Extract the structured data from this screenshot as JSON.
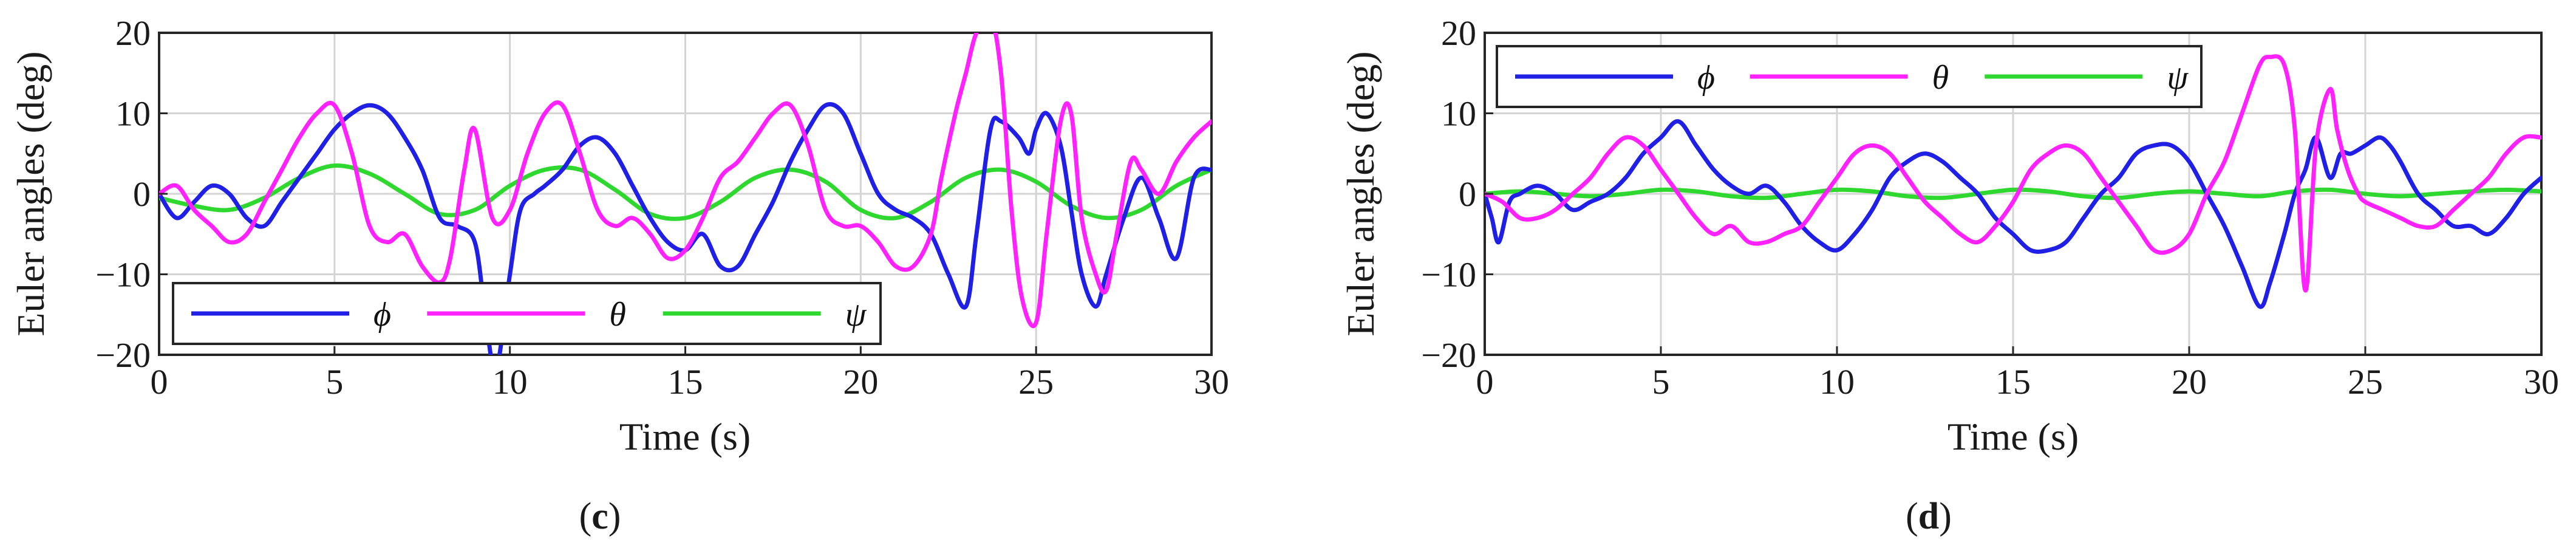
{
  "chart_data": [
    {
      "type": "line",
      "panel_label": "c",
      "xlabel": "Time (s)",
      "ylabel": "Euler angles (deg)",
      "xlim": [
        0,
        30
      ],
      "ylim": [
        -20,
        20
      ],
      "xticks": [
        0,
        5,
        10,
        15,
        20,
        25,
        30
      ],
      "yticks": [
        -20,
        -10,
        0,
        10,
        20
      ],
      "grid": true,
      "legend": {
        "placement": "bottom-left",
        "orientation": "horizontal"
      },
      "series": [
        {
          "name": "ϕ",
          "color": "#1f1fe6",
          "x": [
            0,
            0.5,
            1,
            1.5,
            2,
            2.5,
            3,
            3.5,
            4,
            4.5,
            5,
            5.5,
            6,
            6.5,
            7,
            7.5,
            8,
            8.5,
            9,
            9.3,
            9.6,
            10,
            10.3,
            10.7,
            11,
            11.5,
            12,
            12.5,
            13,
            13.5,
            14,
            14.5,
            15,
            15.5,
            16,
            16.5,
            17,
            17.5,
            18,
            18.5,
            19,
            19.5,
            20,
            20.5,
            21,
            21.5,
            22,
            22.5,
            23,
            23.3,
            23.7,
            24,
            24.5,
            24.8,
            25,
            25.3,
            25.7,
            26,
            26.3,
            26.7,
            27,
            27.5,
            28,
            28.5,
            29,
            29.5,
            30
          ],
          "y": [
            0,
            -3,
            -1,
            1,
            0,
            -3,
            -4,
            -1,
            2,
            5,
            8,
            10,
            11,
            10,
            7,
            3,
            -3,
            -4,
            -6,
            -15,
            -22,
            -10,
            -2,
            0,
            1,
            3,
            6,
            7,
            5,
            1,
            -3,
            -6,
            -7,
            -5,
            -9,
            -9,
            -5,
            -1,
            4,
            8,
            11,
            10,
            5,
            0,
            -2,
            -3,
            -5,
            -10,
            -14,
            -5,
            8,
            9,
            7,
            5,
            8,
            10,
            6,
            -2,
            -10,
            -14,
            -10,
            -3,
            2,
            -3,
            -8,
            2,
            3
          ]
        },
        {
          "name": "θ",
          "color": "#ff22ff",
          "x": [
            0,
            0.5,
            1,
            1.5,
            2,
            2.5,
            3,
            3.5,
            4,
            4.5,
            5,
            5.5,
            6,
            6.5,
            7,
            7.5,
            8,
            8.3,
            8.7,
            9,
            9.5,
            10,
            10.5,
            11,
            11.5,
            12,
            12.5,
            13,
            13.5,
            14,
            14.5,
            15,
            15.5,
            16,
            16.5,
            17,
            17.5,
            18,
            18.5,
            19,
            19.5,
            20,
            20.5,
            21,
            21.5,
            22,
            22.3,
            22.7,
            23,
            23.3,
            23.7,
            24,
            24.3,
            24.6,
            25,
            25.3,
            25.7,
            26,
            26.3,
            26.7,
            27,
            27.3,
            27.7,
            28,
            28.5,
            29,
            29.5,
            30
          ],
          "y": [
            0,
            1,
            -2,
            -4,
            -6,
            -5,
            -1,
            3,
            7,
            10,
            11,
            5,
            -4,
            -6,
            -5,
            -9,
            -11,
            -8,
            3,
            8,
            -3,
            -2,
            5,
            10,
            11,
            5,
            -2,
            -4,
            -3,
            -5,
            -8,
            -7,
            -3,
            2,
            4,
            7,
            10,
            11,
            6,
            -2,
            -4,
            -4,
            -6,
            -9,
            -9,
            -5,
            2,
            10,
            15,
            20,
            22,
            15,
            -2,
            -13,
            -16,
            -5,
            9,
            10,
            -3,
            -10,
            -12,
            -5,
            4,
            3,
            0,
            4,
            7,
            9
          ]
        },
        {
          "name": "ψ",
          "color": "#2ed82e",
          "x": [
            0,
            1,
            2,
            3,
            4,
            5,
            6,
            7,
            8,
            9,
            10,
            11,
            12,
            13,
            14,
            15,
            16,
            17,
            18,
            19,
            20,
            21,
            22,
            23,
            24,
            25,
            26,
            27,
            28,
            29,
            30
          ],
          "y": [
            -0.5,
            -1.5,
            -2,
            -0.5,
            2,
            3.5,
            2.5,
            0,
            -2.5,
            -2,
            1,
            3,
            3,
            0.5,
            -2.5,
            -3,
            -1,
            2,
            3,
            1.5,
            -2,
            -3,
            -1,
            2,
            3,
            1.5,
            -1.5,
            -3,
            -2,
            1,
            3
          ]
        }
      ]
    },
    {
      "type": "line",
      "panel_label": "d",
      "xlabel": "Time (s)",
      "ylabel": "Euler angles (deg)",
      "xlim": [
        0,
        30
      ],
      "ylim": [
        -20,
        20
      ],
      "xticks": [
        0,
        5,
        10,
        15,
        20,
        25,
        30
      ],
      "yticks": [
        -20,
        -10,
        0,
        10,
        20
      ],
      "grid": true,
      "legend": {
        "placement": "top-left",
        "orientation": "horizontal"
      },
      "series": [
        {
          "name": "ϕ",
          "color": "#1f1fe6",
          "x": [
            0,
            0.2,
            0.4,
            0.7,
            1,
            1.5,
            2,
            2.5,
            3,
            3.5,
            4,
            4.5,
            5,
            5.5,
            6,
            6.5,
            7,
            7.5,
            8,
            8.5,
            9,
            9.5,
            10,
            10.5,
            11,
            11.5,
            12,
            12.5,
            13,
            13.5,
            14,
            14.5,
            15,
            15.5,
            16,
            16.5,
            17,
            17.5,
            18,
            18.5,
            19,
            19.5,
            20,
            20.5,
            21,
            21.5,
            22,
            22.3,
            22.7,
            23,
            23.3,
            23.6,
            24,
            24.3,
            24.6,
            25,
            25.4,
            25.7,
            26,
            26.5,
            27,
            27.5,
            28,
            28.5,
            29,
            29.5,
            30
          ],
          "y": [
            0,
            -3,
            -6,
            -1,
            0,
            1,
            0,
            -2,
            -1,
            0,
            2,
            5,
            7,
            9,
            6,
            3,
            1,
            0,
            1,
            -1,
            -4,
            -6,
            -7,
            -5,
            -2,
            2,
            4,
            5,
            4,
            2,
            0,
            -3,
            -5,
            -7,
            -7,
            -6,
            -3,
            0,
            2,
            5,
            6,
            6,
            4,
            0,
            -4,
            -9,
            -14,
            -11,
            -5,
            0,
            3,
            7,
            2,
            5,
            5,
            6,
            7,
            6,
            4,
            0,
            -2,
            -4,
            -4,
            -5,
            -3,
            0,
            2
          ]
        },
        {
          "name": "θ",
          "color": "#ff22ff",
          "x": [
            0,
            0.5,
            1,
            1.5,
            2,
            2.5,
            3,
            3.5,
            4,
            4.5,
            5,
            5.5,
            6,
            6.5,
            7,
            7.5,
            8,
            8.5,
            9,
            9.5,
            10,
            10.5,
            11,
            11.5,
            12,
            12.5,
            13,
            13.5,
            14,
            14.5,
            15,
            15.5,
            16,
            16.5,
            17,
            17.5,
            18,
            18.5,
            19,
            19.5,
            20,
            20.5,
            21,
            21.5,
            22,
            22.3,
            22.7,
            23,
            23.3,
            23.6,
            24,
            24.2,
            24.5,
            24.8,
            25,
            25.5,
            26,
            26.5,
            27,
            27.5,
            28,
            28.5,
            29,
            29.5,
            30
          ],
          "y": [
            0,
            -1,
            -3,
            -3,
            -2,
            0,
            2,
            5,
            7,
            6,
            3,
            0,
            -3,
            -5,
            -4,
            -6,
            -6,
            -5,
            -4,
            -1,
            2,
            5,
            6,
            5,
            2,
            -1,
            -3,
            -5,
            -6,
            -4,
            -1,
            3,
            5,
            6,
            5,
            2,
            -1,
            -4,
            -7,
            -7,
            -5,
            0,
            4,
            10,
            16,
            17,
            16,
            8,
            -12,
            6,
            13,
            8,
            3,
            0,
            -1,
            -2,
            -3,
            -4,
            -4,
            -2,
            0,
            2,
            5,
            7,
            7
          ]
        },
        {
          "name": "ψ",
          "color": "#2ed82e",
          "x": [
            0,
            1,
            2,
            3,
            4,
            5,
            6,
            7,
            8,
            9,
            10,
            11,
            12,
            13,
            14,
            15,
            16,
            17,
            18,
            19,
            20,
            21,
            22,
            23,
            24,
            25,
            26,
            27,
            28,
            29,
            30
          ],
          "y": [
            0,
            0.3,
            0,
            -0.3,
            0,
            0.5,
            0.3,
            -0.3,
            -0.5,
            0,
            0.5,
            0.3,
            -0.3,
            -0.5,
            0,
            0.5,
            0.3,
            -0.3,
            -0.5,
            0,
            0.3,
            0,
            -0.3,
            0.3,
            0.5,
            0,
            -0.3,
            0,
            0.3,
            0.5,
            0.3
          ]
        }
      ]
    }
  ]
}
